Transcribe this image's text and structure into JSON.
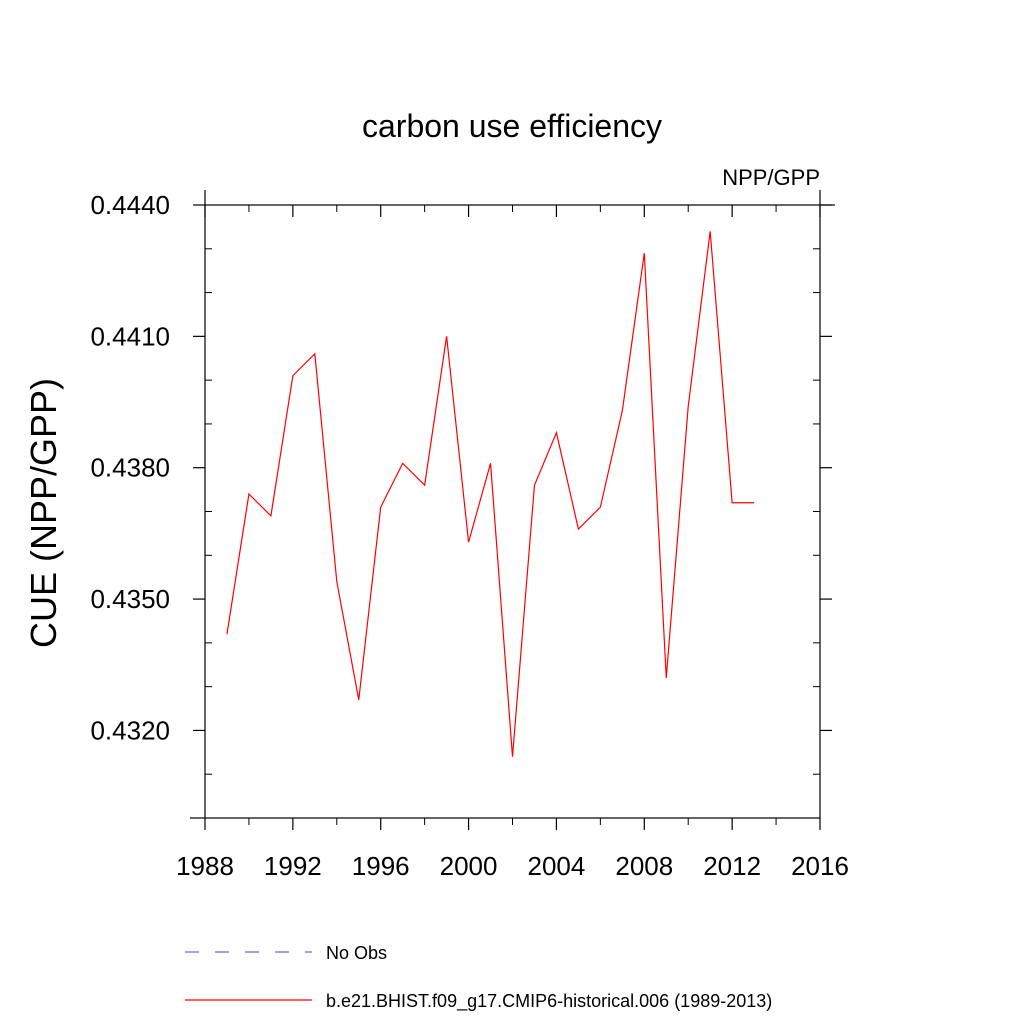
{
  "chart_data": {
    "type": "line",
    "title": "carbon use efficiency",
    "subtitle": "NPP/GPP",
    "xlabel": "",
    "ylabel": "CUE  (NPP/GPP)",
    "xlim": [
      1988,
      2016
    ],
    "ylim": [
      0.43,
      0.444
    ],
    "x_ticks": [
      "1988",
      "1992",
      "1996",
      "2000",
      "2004",
      "2008",
      "2012",
      "2016"
    ],
    "y_ticks": [
      "0.4320",
      "0.4350",
      "0.4380",
      "0.4410",
      "0.4440"
    ],
    "grid": false,
    "x": [
      1989,
      1990,
      1991,
      1992,
      1993,
      1994,
      1995,
      1996,
      1997,
      1998,
      1999,
      2000,
      2001,
      2002,
      2003,
      2004,
      2005,
      2006,
      2007,
      2008,
      2009,
      2010,
      2011,
      2012,
      2013
    ],
    "series": [
      {
        "name": "b.e21.BHIST.f09_g17.CMIP6-historical.006 (1989-2013)",
        "color": "#ff0000",
        "values": [
          0.4342,
          0.4374,
          0.4369,
          0.4401,
          0.4406,
          0.4354,
          0.4327,
          0.4371,
          0.4381,
          0.4376,
          0.441,
          0.4363,
          0.4381,
          0.4314,
          0.4376,
          0.4388,
          0.4366,
          0.4371,
          0.4393,
          0.4429,
          0.4332,
          0.4394,
          0.4434,
          0.4372,
          0.4372
        ]
      }
    ],
    "legend": {
      "placement": "bottom",
      "entries": [
        {
          "label": "No Obs",
          "color": "#6a6ad0",
          "style": "dashed"
        },
        {
          "label": "b.e21.BHIST.f09_g17.CMIP6-historical.006 (1989-2013)",
          "color": "#ff0000",
          "style": "solid"
        }
      ]
    }
  }
}
